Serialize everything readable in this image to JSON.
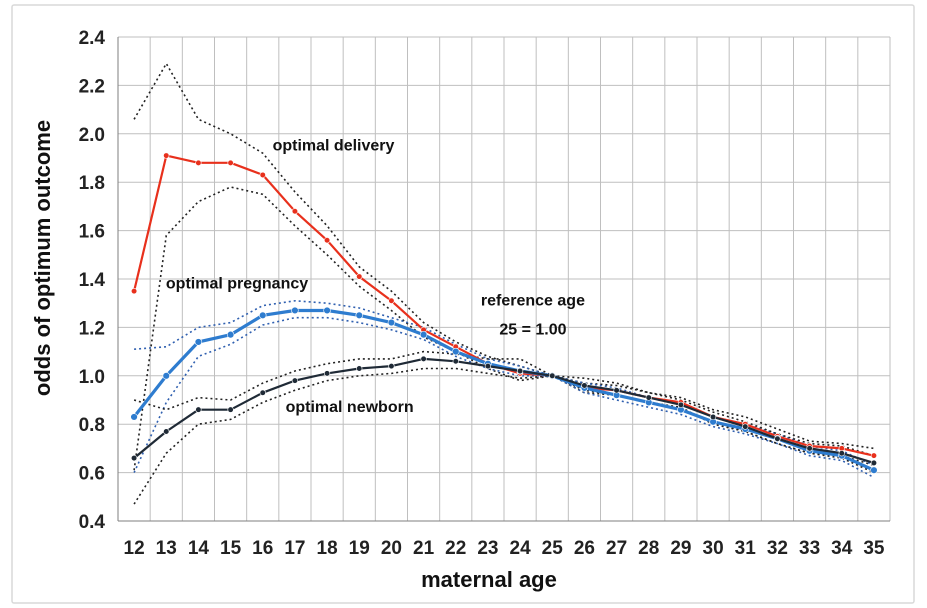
{
  "chart_data": {
    "type": "line",
    "xlabel": "maternal age",
    "ylabel": "odds of optimum outcome",
    "x": [
      12,
      13,
      14,
      15,
      16,
      17,
      18,
      19,
      20,
      21,
      22,
      23,
      24,
      25,
      26,
      27,
      28,
      29,
      30,
      31,
      32,
      33,
      34,
      35
    ],
    "xlim": [
      11.5,
      35.5
    ],
    "ylim": [
      0.4,
      2.4
    ],
    "yticks": [
      "0.4",
      "0.6",
      "0.8",
      "1.0",
      "1.2",
      "1.4",
      "1.6",
      "1.8",
      "2.0",
      "2.2",
      "2.4"
    ],
    "grid": true,
    "annotations": [
      {
        "text": "optimal delivery",
        "x": 18.2,
        "y": 1.93
      },
      {
        "text": "optimal pregnancy",
        "x": 15.2,
        "y": 1.36
      },
      {
        "text": "optimal newborn",
        "x": 18.7,
        "y": 0.85
      },
      {
        "text": "reference age",
        "x": 24.4,
        "y": 1.29
      },
      {
        "text": "25 = 1.00",
        "x": 24.4,
        "y": 1.17
      }
    ],
    "series": [
      {
        "label": "optimal delivery",
        "color": "#e8301c",
        "values": [
          1.35,
          1.91,
          1.88,
          1.88,
          1.83,
          1.68,
          1.56,
          1.41,
          1.31,
          1.19,
          1.12,
          1.05,
          1.01,
          1.0,
          0.95,
          0.94,
          0.91,
          0.89,
          0.83,
          0.8,
          0.75,
          0.71,
          0.7,
          0.67
        ]
      },
      {
        "label": "optimal pregnancy",
        "color": "#2e7ccf",
        "values": [
          0.83,
          1.0,
          1.14,
          1.17,
          1.25,
          1.27,
          1.27,
          1.25,
          1.22,
          1.17,
          1.1,
          1.05,
          1.02,
          1.0,
          0.95,
          0.92,
          0.89,
          0.86,
          0.81,
          0.78,
          0.74,
          0.69,
          0.67,
          0.61
        ]
      },
      {
        "label": "optimal newborn",
        "color": "#1f2a36",
        "values": [
          0.66,
          0.77,
          0.86,
          0.86,
          0.93,
          0.98,
          1.01,
          1.03,
          1.04,
          1.07,
          1.06,
          1.04,
          1.02,
          1.0,
          0.96,
          0.94,
          0.91,
          0.88,
          0.83,
          0.79,
          0.74,
          0.7,
          0.68,
          0.64
        ]
      }
    ],
    "confidence_bounds": [
      {
        "color": "#222222",
        "upper": [
          2.06,
          2.29,
          2.06,
          2.0,
          1.92,
          1.76,
          1.62,
          1.45,
          1.35,
          1.22,
          1.14,
          1.08,
          1.04,
          1.0,
          0.97,
          0.96,
          0.93,
          0.91,
          0.86,
          0.83,
          0.78,
          0.73,
          0.72,
          0.7
        ],
        "lower": [
          0.61,
          1.58,
          1.72,
          1.78,
          1.75,
          1.62,
          1.5,
          1.37,
          1.27,
          1.16,
          1.1,
          1.03,
          0.98,
          1.0,
          0.93,
          0.92,
          0.89,
          0.87,
          0.8,
          0.77,
          0.72,
          0.68,
          0.67,
          0.63
        ]
      },
      {
        "color": "#3060b0",
        "upper": [
          1.11,
          1.12,
          1.2,
          1.22,
          1.29,
          1.31,
          1.3,
          1.28,
          1.24,
          1.2,
          1.13,
          1.07,
          1.04,
          1.0,
          0.97,
          0.95,
          0.91,
          0.88,
          0.83,
          0.8,
          0.76,
          0.71,
          0.69,
          0.63
        ],
        "lower": [
          0.6,
          0.89,
          1.08,
          1.13,
          1.21,
          1.24,
          1.24,
          1.22,
          1.19,
          1.15,
          1.08,
          1.03,
          1.0,
          1.0,
          0.93,
          0.9,
          0.87,
          0.84,
          0.79,
          0.76,
          0.72,
          0.67,
          0.65,
          0.58
        ]
      },
      {
        "color": "#222222",
        "upper": [
          0.9,
          0.86,
          0.91,
          0.9,
          0.97,
          1.02,
          1.05,
          1.07,
          1.07,
          1.1,
          1.09,
          1.07,
          1.07,
          1.0,
          0.99,
          0.97,
          0.93,
          0.9,
          0.85,
          0.81,
          0.76,
          0.72,
          0.71,
          0.67
        ],
        "lower": [
          0.47,
          0.68,
          0.8,
          0.82,
          0.89,
          0.94,
          0.98,
          1.0,
          1.01,
          1.03,
          1.03,
          1.01,
          0.99,
          1.0,
          0.94,
          0.92,
          0.89,
          0.86,
          0.81,
          0.77,
          0.72,
          0.68,
          0.66,
          0.6
        ]
      }
    ]
  }
}
